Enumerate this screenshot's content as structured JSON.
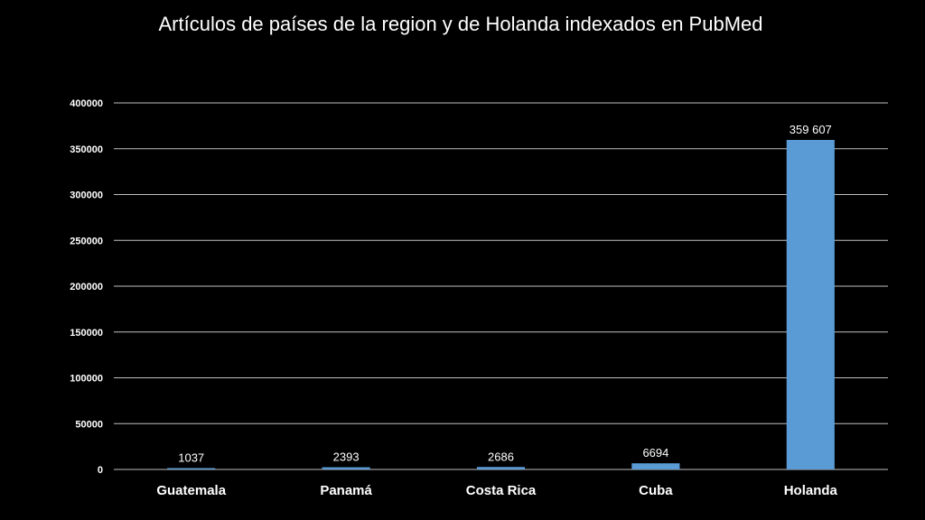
{
  "chart_data": {
    "type": "bar",
    "title": "Artículos de países de la region y de Holanda indexados en PubMed",
    "categories": [
      "Guatemala",
      "Panamá",
      "Costa Rica",
      "Cuba",
      "Holanda"
    ],
    "values": [
      1037,
      2393,
      2686,
      6694,
      359607
    ],
    "data_labels": [
      "1037",
      "2393",
      "2686",
      "6694",
      "359 607"
    ],
    "ylim": [
      0,
      400000
    ],
    "yticks": [
      0,
      50000,
      100000,
      150000,
      200000,
      250000,
      300000,
      350000,
      400000
    ],
    "ytick_labels": [
      "0",
      "50000",
      "100000",
      "150000",
      "200000",
      "250000",
      "300000",
      "350000",
      "400000"
    ],
    "xlabel": "",
    "ylabel": "",
    "grid": true,
    "legend": "none",
    "colors": {
      "bar": "#5b9bd5",
      "background": "#000000",
      "grid": "#bfbfbf",
      "text": "#ffffff"
    }
  }
}
